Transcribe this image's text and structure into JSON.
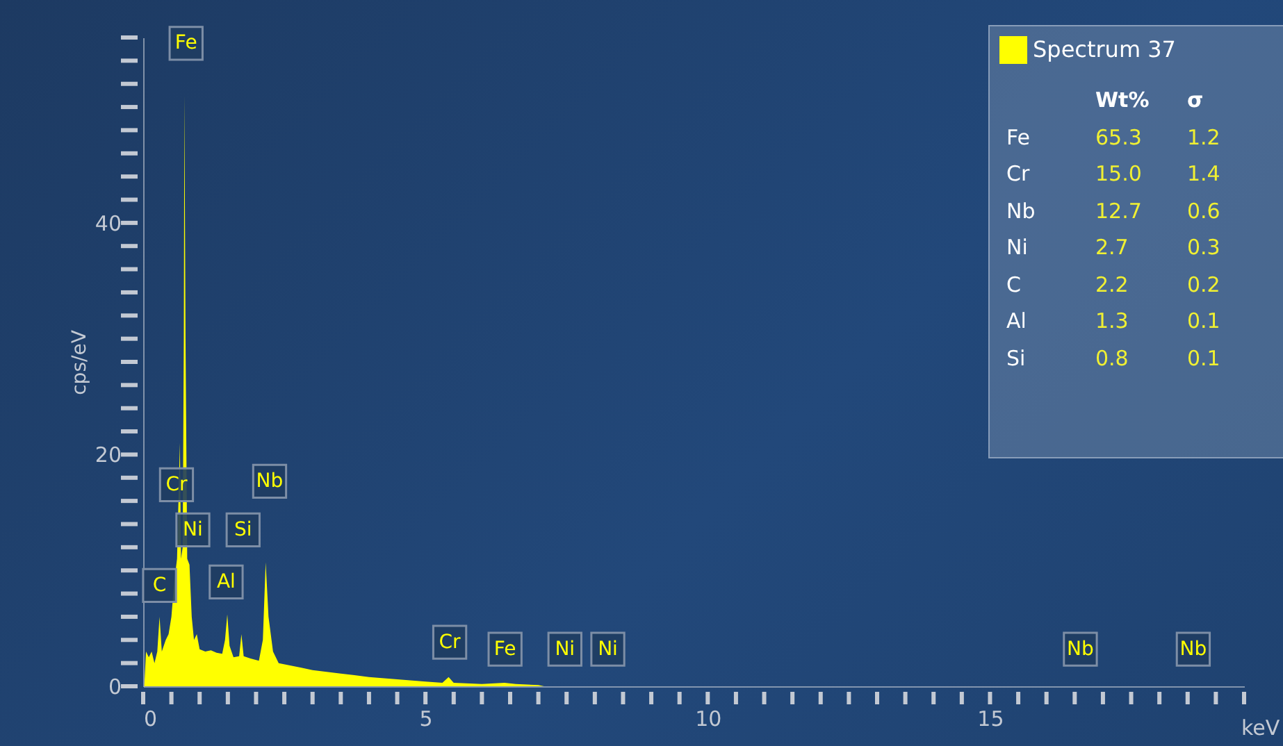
{
  "chart_data": {
    "type": "area",
    "xlabel": "keV",
    "ylabel": "cps/eV",
    "xlim": [
      0,
      19.5
    ],
    "ylim": [
      0,
      56
    ],
    "xticks": [
      0,
      {
        "value": 0.5,
        "label": null
      },
      {
        "value": 1,
        "label": null
      },
      {
        "value": 1.5,
        "label": null
      },
      {
        "value": 2,
        "label": null
      },
      {
        "value": 2.5,
        "label": null
      },
      {
        "value": 3,
        "label": null
      },
      {
        "value": 3.5,
        "label": null
      },
      {
        "value": 4,
        "label": null
      },
      {
        "value": 4.5,
        "label": null
      },
      5,
      {
        "value": 5.5,
        "label": null
      },
      {
        "value": 6,
        "label": null
      },
      {
        "value": 6.5,
        "label": null
      },
      {
        "value": 7,
        "label": null
      },
      {
        "value": 7.5,
        "label": null
      },
      {
        "value": 8,
        "label": null
      },
      {
        "value": 8.5,
        "label": null
      },
      {
        "value": 9,
        "label": null
      },
      {
        "value": 9.5,
        "label": null
      },
      10,
      {
        "value": 10.5,
        "label": null
      },
      {
        "value": 11,
        "label": null
      },
      {
        "value": 11.5,
        "label": null
      },
      {
        "value": 12,
        "label": null
      },
      {
        "value": 12.5,
        "label": null
      },
      {
        "value": 13,
        "label": null
      },
      {
        "value": 13.5,
        "label": null
      },
      {
        "value": 14,
        "label": null
      },
      {
        "value": 14.5,
        "label": null
      },
      15,
      {
        "value": 15.5,
        "label": null
      },
      {
        "value": 16,
        "label": null
      },
      {
        "value": 16.5,
        "label": null
      },
      {
        "value": 17,
        "label": null
      },
      {
        "value": 17.5,
        "label": null
      },
      {
        "value": 18,
        "label": null
      },
      {
        "value": 18.5,
        "label": null
      },
      {
        "value": 19,
        "label": null
      },
      {
        "value": 19.5,
        "label": null
      }
    ],
    "yticks": [
      0,
      {
        "value": 2,
        "label": null
      },
      {
        "value": 4,
        "label": null
      },
      {
        "value": 6,
        "label": null
      },
      {
        "value": 8,
        "label": null
      },
      {
        "value": 10,
        "label": null
      },
      {
        "value": 12,
        "label": null
      },
      {
        "value": 14,
        "label": null
      },
      {
        "value": 16,
        "label": null
      },
      {
        "value": 18,
        "label": null
      },
      20,
      {
        "value": 22,
        "label": null
      },
      {
        "value": 24,
        "label": null
      },
      {
        "value": 26,
        "label": null
      },
      {
        "value": 28,
        "label": null
      },
      {
        "value": 30,
        "label": null
      },
      {
        "value": 32,
        "label": null
      },
      {
        "value": 34,
        "label": null
      },
      {
        "value": 36,
        "label": null
      },
      {
        "value": 38,
        "label": null
      },
      40,
      {
        "value": 42,
        "label": null
      },
      {
        "value": 44,
        "label": null
      },
      {
        "value": 46,
        "label": null
      },
      {
        "value": 48,
        "label": null
      },
      {
        "value": 50,
        "label": null
      },
      {
        "value": 52,
        "label": null
      },
      {
        "value": 54,
        "label": null
      },
      {
        "value": 56,
        "label": null
      }
    ],
    "legend": "top right",
    "x": [
      0.02,
      0.05,
      0.1,
      0.15,
      0.2,
      0.25,
      0.29,
      0.33,
      0.4,
      0.45,
      0.5,
      0.55,
      0.6,
      0.65,
      0.67,
      0.7,
      0.72,
      0.73,
      0.75,
      0.78,
      0.82,
      0.86,
      0.9,
      0.95,
      1.0,
      1.1,
      1.2,
      1.3,
      1.4,
      1.45,
      1.49,
      1.53,
      1.6,
      1.7,
      1.74,
      1.78,
      1.9,
      2.05,
      2.12,
      2.17,
      2.22,
      2.3,
      2.4,
      2.6,
      2.8,
      3.0,
      3.5,
      4.0,
      4.5,
      5.0,
      5.3,
      5.41,
      5.5,
      6.0,
      6.4,
      6.6,
      7.0,
      7.1
    ],
    "series": [
      {
        "name": "Spectrum 37",
        "color": "#ffff00",
        "values": [
          0,
          3,
          2.5,
          3,
          2,
          3,
          6,
          3,
          4,
          4.5,
          6,
          9,
          11,
          21,
          11,
          12,
          30,
          51,
          30,
          11,
          10.5,
          6,
          4,
          4.5,
          3.2,
          3,
          3.1,
          2.9,
          2.8,
          4,
          6.2,
          3.5,
          2.5,
          2.6,
          4.5,
          2.6,
          2.4,
          2.2,
          4,
          10.7,
          6,
          3,
          2,
          1.8,
          1.6,
          1.4,
          1.1,
          0.8,
          0.6,
          0.4,
          0.3,
          0.8,
          0.3,
          0.2,
          0.3,
          0.2,
          0.1,
          0
        ]
      }
    ],
    "annotations": [
      {
        "text": "Fe",
        "x": 0.76,
        "y": 55.5
      },
      {
        "text": "Cr",
        "x": 0.59,
        "y": 17.4
      },
      {
        "text": "Nb",
        "x": 2.24,
        "y": 17.7
      },
      {
        "text": "Ni",
        "x": 0.88,
        "y": 13.5
      },
      {
        "text": "Si",
        "x": 1.77,
        "y": 13.5
      },
      {
        "text": "C",
        "x": 0.29,
        "y": 8.7
      },
      {
        "text": "Al",
        "x": 1.47,
        "y": 9
      },
      {
        "text": "Cr",
        "x": 5.43,
        "y": 3.8
      },
      {
        "text": "Fe",
        "x": 6.41,
        "y": 3.2
      },
      {
        "text": "Ni",
        "x": 7.47,
        "y": 3.2
      },
      {
        "text": "Ni",
        "x": 8.23,
        "y": 3.2
      },
      {
        "text": "Nb",
        "x": 16.6,
        "y": 3.2
      },
      {
        "text": "Nb",
        "x": 18.6,
        "y": 3.2
      },
      "Wt%",
      "σ",
      "Fe",
      "65.3",
      "1.2",
      "Cr",
      "15.0",
      "1.4",
      "Nb",
      "12.7",
      "0.6",
      "Ni",
      "2.7",
      "0.3",
      "C",
      "2.2",
      "0.2",
      "Al",
      "1.3",
      "0.1",
      "Si",
      "0.8",
      "0.1"
    ]
  }
}
